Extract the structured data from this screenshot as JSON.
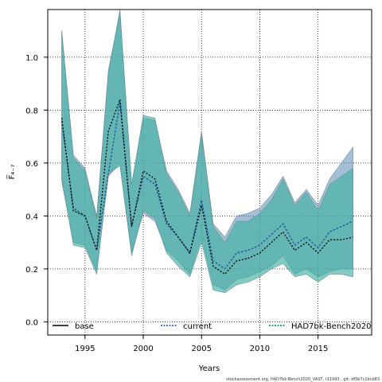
{
  "chart_data": {
    "type": "line",
    "title": "",
    "xlabel": "Years",
    "ylabel": "F̅₄₋₇",
    "xlim": [
      1991.8,
      2019.6
    ],
    "ylim": [
      -0.05,
      1.18
    ],
    "x_ticks": [
      1995,
      2000,
      2005,
      2010,
      2015
    ],
    "y_ticks": [
      0.0,
      0.2,
      0.4,
      0.6,
      0.8,
      1.0
    ],
    "x_tick_labels": [
      "1995",
      "2000",
      "2005",
      "2010",
      "2015"
    ],
    "y_tick_labels": [
      "0.0",
      "0.2",
      "0.4",
      "0.6",
      "0.8",
      "1.0"
    ],
    "grid": true,
    "legend_position": "bottom",
    "x": [
      1993,
      1994,
      1995,
      1996,
      1997,
      1998,
      1999,
      2000,
      2001,
      2002,
      2003,
      2004,
      2005,
      2006,
      2007,
      2008,
      2009,
      2010,
      2011,
      2012,
      2013,
      2014,
      2015,
      2016,
      2017,
      2018
    ],
    "series": [
      {
        "name": "base",
        "color": "#000000",
        "dash": "solid",
        "values": null
      },
      {
        "name": "current",
        "color": "#1f4e9e",
        "dash": "dotted",
        "values": [
          0.76,
          0.43,
          0.4,
          0.27,
          0.56,
          0.83,
          0.36,
          0.55,
          0.52,
          0.37,
          0.32,
          0.26,
          0.46,
          0.23,
          0.2,
          0.26,
          0.27,
          0.29,
          0.33,
          0.37,
          0.29,
          0.32,
          0.28,
          0.34,
          0.36,
          0.38
        ],
        "band_lower": [
          0.53,
          0.3,
          0.29,
          0.19,
          0.55,
          0.6,
          0.26,
          0.41,
          0.38,
          0.27,
          0.23,
          0.18,
          0.32,
          0.14,
          0.12,
          0.16,
          0.17,
          0.19,
          0.21,
          0.25,
          0.18,
          0.2,
          0.17,
          0.19,
          0.2,
          0.2
        ],
        "band_upper": [
          1.1,
          0.63,
          0.58,
          0.4,
          0.95,
          1.17,
          0.52,
          0.77,
          0.76,
          0.57,
          0.5,
          0.41,
          0.72,
          0.37,
          0.32,
          0.4,
          0.41,
          0.43,
          0.48,
          0.55,
          0.45,
          0.5,
          0.44,
          0.54,
          0.6,
          0.66
        ],
        "band_color": "#5b8db5"
      },
      {
        "name": "HAD7bk-Bench2020",
        "color": "#0f7a6e",
        "dash": "dotted",
        "values": [
          0.77,
          0.42,
          0.4,
          0.27,
          0.72,
          0.84,
          0.36,
          0.57,
          0.54,
          0.38,
          0.32,
          0.26,
          0.44,
          0.21,
          0.18,
          0.23,
          0.24,
          0.26,
          0.3,
          0.34,
          0.27,
          0.3,
          0.26,
          0.31,
          0.31,
          0.32
        ],
        "band_lower": [
          0.54,
          0.29,
          0.28,
          0.18,
          0.56,
          0.59,
          0.25,
          0.42,
          0.39,
          0.26,
          0.21,
          0.17,
          0.3,
          0.12,
          0.11,
          0.14,
          0.15,
          0.17,
          0.2,
          0.22,
          0.17,
          0.18,
          0.15,
          0.18,
          0.18,
          0.17
        ],
        "band_upper": [
          1.1,
          0.62,
          0.57,
          0.39,
          0.94,
          1.18,
          0.52,
          0.78,
          0.77,
          0.56,
          0.49,
          0.4,
          0.71,
          0.36,
          0.3,
          0.38,
          0.38,
          0.41,
          0.46,
          0.54,
          0.44,
          0.49,
          0.42,
          0.52,
          0.55,
          0.58
        ],
        "band_color": "#3fb0a2"
      }
    ]
  },
  "footer": {
    "text": "stockassessment.org, HAD7bk-Bench2020_VAST, r11993 , git: df0b7c1bcb83"
  }
}
